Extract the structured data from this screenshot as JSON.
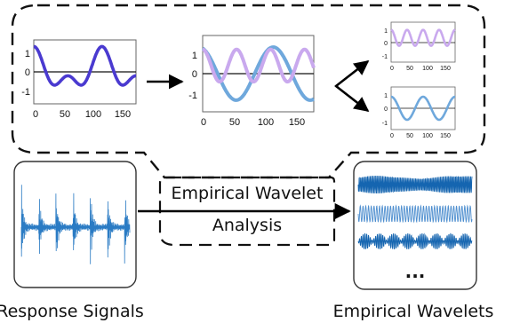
{
  "labels": {
    "center_line1": "Empirical Wavelet",
    "center_line2": "Analysis",
    "left_caption": "Response Signals",
    "right_caption": "Empirical Wavelets",
    "ellipsis": "..."
  },
  "colors": {
    "dark_purple": "#4a3ad0",
    "light_purple": "#c9a9ee",
    "light_blue": "#6fa8dc",
    "signal_blue": "#2a7bc4",
    "wavelet_blue": "#1565b0"
  },
  "chart_data": [
    {
      "type": "line",
      "xlim": [
        0,
        180
      ],
      "ylim": [
        -1.6,
        1.6
      ],
      "x_ticks": [
        "0",
        "50",
        "100",
        "150"
      ],
      "y_ticks": [
        "1",
        "0",
        "-1"
      ],
      "series": [
        {
          "values": "sum of two sinusoids (purple)"
        }
      ]
    },
    {
      "type": "line",
      "xlim": [
        0,
        180
      ],
      "ylim": [
        -1.6,
        1.6
      ],
      "x_ticks": [
        "0",
        "50",
        "100",
        "150"
      ],
      "y_ticks": [
        "1",
        "0",
        "-1"
      ]
    },
    {
      "type": "line",
      "xlim": [
        0,
        180
      ],
      "ylim": [
        -1.5,
        1.5
      ],
      "x_ticks": [
        "0",
        "50",
        "100",
        "150"
      ],
      "y_ticks": [
        "1",
        "0",
        "-1"
      ]
    },
    {
      "type": "line",
      "xlim": [
        0,
        180
      ],
      "ylim": [
        -1.5,
        1.5
      ],
      "x_ticks": [
        "0",
        "50",
        "100",
        "150"
      ],
      "y_ticks": [
        "1",
        "0",
        "-1"
      ]
    }
  ]
}
